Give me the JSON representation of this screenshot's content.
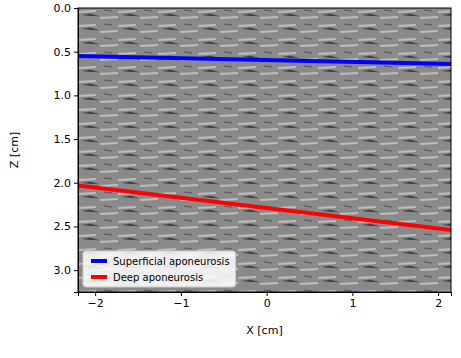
{
  "chart_data": {
    "type": "line",
    "x_label": "X [cm]",
    "y_label": "Z [cm]",
    "x": [
      -2.2,
      2.15
    ],
    "series": [
      {
        "name": "Superficial aponeurosis",
        "color": "#0000ff",
        "values": [
          0.55,
          0.64
        ]
      },
      {
        "name": "Deep aponeurosis",
        "color": "#ff0000",
        "values": [
          2.03,
          2.54
        ]
      }
    ],
    "xlim": [
      -2.2,
      2.15
    ],
    "ylim": [
      0,
      3.25
    ],
    "xticks": [
      {
        "value": -2,
        "label": "−2"
      },
      {
        "value": -1,
        "label": "−1"
      },
      0,
      1,
      2
    ],
    "yticks": [
      {
        "value": 0,
        "label": "0.0"
      },
      0.5,
      {
        "value": 1,
        "label": "1.0"
      },
      1.5,
      {
        "value": 2,
        "label": "2.0"
      },
      2.5,
      {
        "value": 3,
        "label": "3.0"
      }
    ],
    "legend": "lower left"
  }
}
